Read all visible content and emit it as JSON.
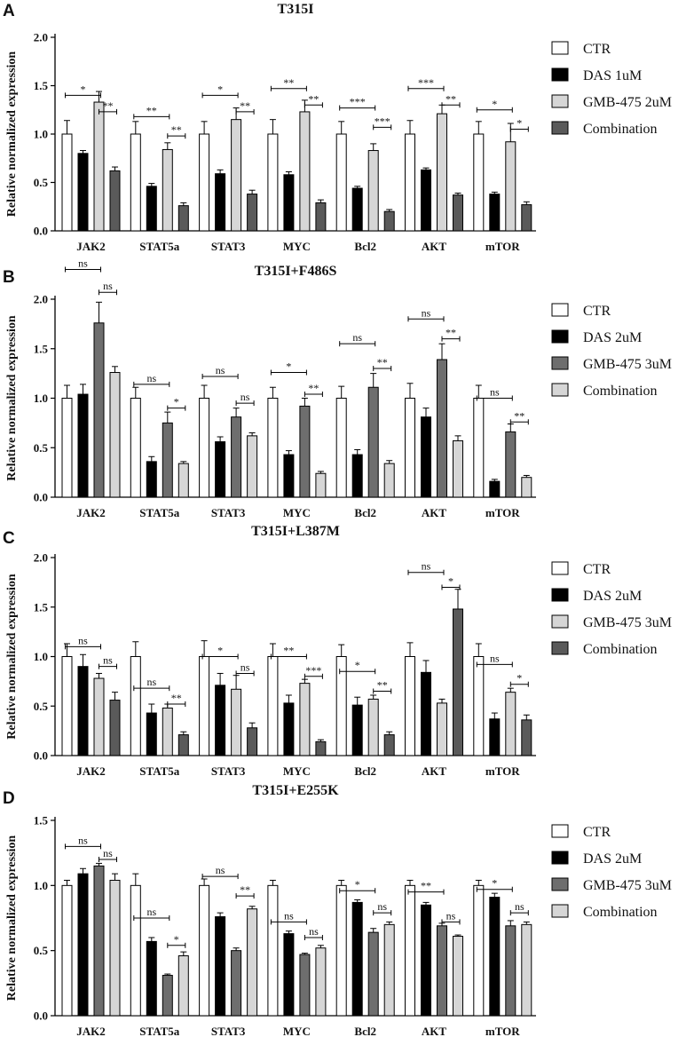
{
  "chart_data": [
    {
      "type": "bar",
      "panel_label": "A",
      "title": "T315I",
      "ylabel": "Relative normalized expression",
      "xlabel": "",
      "ylim": [
        0,
        2.0
      ],
      "yticks": [
        "0.0",
        "0.5",
        "1.0",
        "1.5",
        "2.0"
      ],
      "categories": [
        "JAK2",
        "STAT5a",
        "STAT3",
        "MYC",
        "Bcl2",
        "AKT",
        "mTOR"
      ],
      "series": [
        {
          "name": "CTR",
          "color": "#ffffff",
          "values": [
            1.0,
            1.0,
            1.0,
            1.0,
            1.0,
            1.0,
            1.0
          ],
          "errors": [
            0.14,
            0.13,
            0.13,
            0.15,
            0.13,
            0.14,
            0.13
          ]
        },
        {
          "name": "DAS 1uM",
          "color": "#000000",
          "values": [
            0.8,
            0.46,
            0.59,
            0.58,
            0.44,
            0.63,
            0.38
          ],
          "errors": [
            0.03,
            0.03,
            0.04,
            0.03,
            0.02,
            0.02,
            0.02
          ]
        },
        {
          "name": "GMB-475 2uM",
          "color": "#d6d6d6",
          "values": [
            1.33,
            0.84,
            1.15,
            1.23,
            0.83,
            1.21,
            0.92
          ],
          "errors": [
            0.11,
            0.07,
            0.12,
            0.12,
            0.07,
            0.09,
            0.19
          ]
        },
        {
          "name": "Combination",
          "color": "#5a5a5a",
          "values": [
            0.62,
            0.26,
            0.38,
            0.29,
            0.2,
            0.37,
            0.27
          ],
          "errors": [
            0.04,
            0.03,
            0.04,
            0.03,
            0.02,
            0.02,
            0.03
          ]
        }
      ],
      "significance": [
        {
          "category": 0,
          "from": 0,
          "to": 2,
          "level": 1.4,
          "label": "*"
        },
        {
          "category": 0,
          "from": 2,
          "to": 3,
          "level": 1.23,
          "label": "**"
        },
        {
          "category": 1,
          "from": 0,
          "to": 2,
          "level": 1.18,
          "label": "**"
        },
        {
          "category": 1,
          "from": 2,
          "to": 3,
          "level": 0.98,
          "label": "**"
        },
        {
          "category": 2,
          "from": 0,
          "to": 2,
          "level": 1.4,
          "label": "*"
        },
        {
          "category": 2,
          "from": 2,
          "to": 3,
          "level": 1.23,
          "label": "**"
        },
        {
          "category": 3,
          "from": 0,
          "to": 2,
          "level": 1.47,
          "label": "**"
        },
        {
          "category": 3,
          "from": 2,
          "to": 3,
          "level": 1.3,
          "label": "**"
        },
        {
          "category": 4,
          "from": 0,
          "to": 2,
          "level": 1.27,
          "label": "***"
        },
        {
          "category": 4,
          "from": 2,
          "to": 3,
          "level": 1.07,
          "label": "***"
        },
        {
          "category": 5,
          "from": 0,
          "to": 2,
          "level": 1.47,
          "label": "***"
        },
        {
          "category": 5,
          "from": 2,
          "to": 3,
          "level": 1.3,
          "label": "**"
        },
        {
          "category": 6,
          "from": 0,
          "to": 2,
          "level": 1.25,
          "label": "*"
        },
        {
          "category": 6,
          "from": 2,
          "to": 3,
          "level": 1.05,
          "label": "*"
        }
      ]
    },
    {
      "type": "bar",
      "panel_label": "B",
      "title": "T315I+F486S",
      "ylabel": "Relative normalized expression",
      "xlabel": "",
      "ylim": [
        0,
        2.0
      ],
      "yticks": [
        "0.0",
        "0.5",
        "1.0",
        "1.5",
        "2.0"
      ],
      "categories": [
        "JAK2",
        "STAT5a",
        "STAT3",
        "MYC",
        "Bcl2",
        "AKT",
        "mTOR"
      ],
      "series": [
        {
          "name": "CTR",
          "color": "#ffffff",
          "values": [
            1.0,
            1.0,
            1.0,
            1.0,
            1.0,
            1.0,
            1.0
          ],
          "errors": [
            0.13,
            0.11,
            0.13,
            0.11,
            0.12,
            0.15,
            0.13
          ]
        },
        {
          "name": "DAS 2uM",
          "color": "#000000",
          "values": [
            1.04,
            0.36,
            0.56,
            0.43,
            0.43,
            0.81,
            0.16
          ],
          "errors": [
            0.1,
            0.05,
            0.05,
            0.04,
            0.05,
            0.09,
            0.02
          ]
        },
        {
          "name": "GMB-475 3uM",
          "color": "#6e6e6e",
          "values": [
            1.76,
            0.75,
            0.81,
            0.92,
            1.11,
            1.39,
            0.66
          ],
          "errors": [
            0.21,
            0.11,
            0.09,
            0.08,
            0.14,
            0.16,
            0.08
          ]
        },
        {
          "name": "Combination",
          "color": "#d6d6d6",
          "values": [
            1.26,
            0.34,
            0.62,
            0.24,
            0.34,
            0.57,
            0.2
          ],
          "errors": [
            0.06,
            0.02,
            0.03,
            0.02,
            0.03,
            0.05,
            0.02
          ]
        }
      ],
      "significance": [
        {
          "category": 0,
          "from": 0,
          "to": 2,
          "level": 2.3,
          "label": "ns"
        },
        {
          "category": 0,
          "from": 2,
          "to": 3,
          "level": 2.07,
          "label": "ns"
        },
        {
          "category": 1,
          "from": 0,
          "to": 2,
          "level": 1.14,
          "label": "ns"
        },
        {
          "category": 1,
          "from": 2,
          "to": 3,
          "level": 0.9,
          "label": "*"
        },
        {
          "category": 2,
          "from": 0,
          "to": 2,
          "level": 1.22,
          "label": "ns"
        },
        {
          "category": 2,
          "from": 2,
          "to": 3,
          "level": 0.95,
          "label": "ns"
        },
        {
          "category": 3,
          "from": 0,
          "to": 2,
          "level": 1.26,
          "label": "*"
        },
        {
          "category": 3,
          "from": 2,
          "to": 3,
          "level": 1.04,
          "label": "**"
        },
        {
          "category": 4,
          "from": 0,
          "to": 2,
          "level": 1.55,
          "label": "ns"
        },
        {
          "category": 4,
          "from": 2,
          "to": 3,
          "level": 1.3,
          "label": "**"
        },
        {
          "category": 5,
          "from": 0,
          "to": 2,
          "level": 1.8,
          "label": "ns"
        },
        {
          "category": 5,
          "from": 2,
          "to": 3,
          "level": 1.6,
          "label": "**"
        },
        {
          "category": 6,
          "from": 0,
          "to": 2,
          "level": 1.0,
          "label": "ns"
        },
        {
          "category": 6,
          "from": 2,
          "to": 3,
          "level": 0.76,
          "label": "**"
        }
      ]
    },
    {
      "type": "bar",
      "panel_label": "C",
      "title": "T315I+L387M",
      "ylabel": "Relative normalized expression",
      "xlabel": "",
      "ylim": [
        0,
        2.0
      ],
      "yticks": [
        "0.0",
        "0.5",
        "1.0",
        "1.5",
        "2.0"
      ],
      "categories": [
        "JAK2",
        "STAT5a",
        "STAT3",
        "MYC",
        "Bcl2",
        "AKT",
        "mTOR"
      ],
      "series": [
        {
          "name": "CTR",
          "color": "#ffffff",
          "values": [
            1.0,
            1.0,
            1.0,
            1.0,
            1.0,
            1.0,
            1.0
          ],
          "errors": [
            0.13,
            0.15,
            0.16,
            0.13,
            0.12,
            0.14,
            0.13
          ]
        },
        {
          "name": "DAS 2uM",
          "color": "#000000",
          "values": [
            0.9,
            0.43,
            0.71,
            0.53,
            0.51,
            0.84,
            0.37
          ],
          "errors": [
            0.12,
            0.09,
            0.12,
            0.08,
            0.08,
            0.12,
            0.06
          ]
        },
        {
          "name": "GMB-475 3uM",
          "color": "#d6d6d6",
          "values": [
            0.78,
            0.48,
            0.67,
            0.73,
            0.57,
            0.53,
            0.64
          ],
          "errors": [
            0.05,
            0.04,
            0.14,
            0.04,
            0.04,
            0.04,
            0.04
          ]
        },
        {
          "name": "Combination",
          "color": "#5a5a5a",
          "values": [
            0.56,
            0.21,
            0.28,
            0.14,
            0.21,
            1.48,
            0.36
          ],
          "errors": [
            0.08,
            0.03,
            0.05,
            0.02,
            0.03,
            0.2,
            0.05
          ]
        }
      ],
      "significance": [
        {
          "category": 0,
          "from": 0,
          "to": 2,
          "level": 1.1,
          "label": "ns"
        },
        {
          "category": 0,
          "from": 2,
          "to": 3,
          "level": 0.9,
          "label": "ns"
        },
        {
          "category": 1,
          "from": 0,
          "to": 2,
          "level": 0.68,
          "label": "ns"
        },
        {
          "category": 1,
          "from": 2,
          "to": 3,
          "level": 0.52,
          "label": "**"
        },
        {
          "category": 2,
          "from": 0,
          "to": 2,
          "level": 1.0,
          "label": "*"
        },
        {
          "category": 2,
          "from": 2,
          "to": 3,
          "level": 0.83,
          "label": "ns"
        },
        {
          "category": 3,
          "from": 0,
          "to": 2,
          "level": 1.0,
          "label": "**"
        },
        {
          "category": 3,
          "from": 2,
          "to": 3,
          "level": 0.8,
          "label": "***"
        },
        {
          "category": 4,
          "from": 0,
          "to": 2,
          "level": 0.85,
          "label": "*"
        },
        {
          "category": 4,
          "from": 2,
          "to": 3,
          "level": 0.65,
          "label": "**"
        },
        {
          "category": 5,
          "from": 0,
          "to": 2,
          "level": 1.85,
          "label": "ns"
        },
        {
          "category": 5,
          "from": 2,
          "to": 3,
          "level": 1.7,
          "label": "*"
        },
        {
          "category": 6,
          "from": 0,
          "to": 2,
          "level": 0.92,
          "label": "ns"
        },
        {
          "category": 6,
          "from": 2,
          "to": 3,
          "level": 0.72,
          "label": "*"
        }
      ]
    },
    {
      "type": "bar",
      "panel_label": "D",
      "title": "T315I+E255K",
      "ylabel": "Relative normalized expression",
      "xlabel": "",
      "ylim": [
        0,
        1.5
      ],
      "yticks": [
        "0.0",
        "0.5",
        "1.0",
        "1.5"
      ],
      "categories": [
        "JAK2",
        "STAT5a",
        "STAT3",
        "MYC",
        "Bcl2",
        "AKT",
        "mTOR"
      ],
      "series": [
        {
          "name": "CTR",
          "color": "#ffffff",
          "values": [
            1.0,
            1.0,
            1.0,
            1.0,
            1.0,
            1.0,
            1.0
          ],
          "errors": [
            0.04,
            0.09,
            0.05,
            0.04,
            0.04,
            0.04,
            0.04
          ]
        },
        {
          "name": "DAS 2uM",
          "color": "#000000",
          "values": [
            1.09,
            0.57,
            0.76,
            0.63,
            0.87,
            0.85,
            0.91
          ],
          "errors": [
            0.04,
            0.03,
            0.03,
            0.02,
            0.02,
            0.02,
            0.03
          ]
        },
        {
          "name": "GMB-475 3uM",
          "color": "#6e6e6e",
          "values": [
            1.15,
            0.31,
            0.5,
            0.47,
            0.64,
            0.69,
            0.69
          ],
          "errors": [
            0.02,
            0.01,
            0.02,
            0.01,
            0.03,
            0.02,
            0.04
          ]
        },
        {
          "name": "Combination",
          "color": "#d6d6d6",
          "values": [
            1.04,
            0.46,
            0.82,
            0.52,
            0.7,
            0.61,
            0.7
          ],
          "errors": [
            0.05,
            0.03,
            0.02,
            0.02,
            0.02,
            0.01,
            0.02
          ]
        }
      ],
      "significance": [
        {
          "category": 0,
          "from": 0,
          "to": 2,
          "level": 1.3,
          "label": "ns"
        },
        {
          "category": 0,
          "from": 2,
          "to": 3,
          "level": 1.2,
          "label": "ns"
        },
        {
          "category": 1,
          "from": 0,
          "to": 2,
          "level": 0.75,
          "label": "ns"
        },
        {
          "category": 1,
          "from": 2,
          "to": 3,
          "level": 0.54,
          "label": "*"
        },
        {
          "category": 2,
          "from": 0,
          "to": 2,
          "level": 1.07,
          "label": "ns"
        },
        {
          "category": 2,
          "from": 2,
          "to": 3,
          "level": 0.92,
          "label": "**"
        },
        {
          "category": 3,
          "from": 0,
          "to": 2,
          "level": 0.72,
          "label": "ns"
        },
        {
          "category": 3,
          "from": 2,
          "to": 3,
          "level": 0.6,
          "label": "ns"
        },
        {
          "category": 4,
          "from": 0,
          "to": 2,
          "level": 0.96,
          "label": "*"
        },
        {
          "category": 4,
          "from": 2,
          "to": 3,
          "level": 0.79,
          "label": "ns"
        },
        {
          "category": 5,
          "from": 0,
          "to": 2,
          "level": 0.95,
          "label": "**"
        },
        {
          "category": 5,
          "from": 2,
          "to": 3,
          "level": 0.72,
          "label": "ns"
        },
        {
          "category": 6,
          "from": 0,
          "to": 2,
          "level": 0.97,
          "label": "*"
        },
        {
          "category": 6,
          "from": 2,
          "to": 3,
          "level": 0.79,
          "label": "ns"
        }
      ]
    }
  ]
}
